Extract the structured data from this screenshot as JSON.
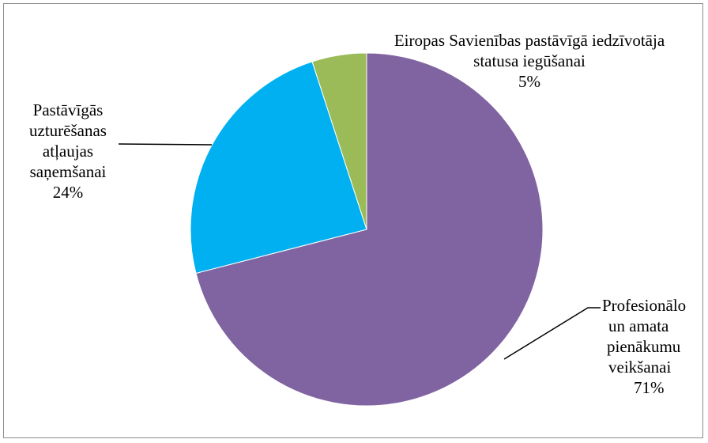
{
  "chart_data": {
    "type": "pie",
    "title": "",
    "start_angle_deg": 0,
    "direction": "clockwise",
    "legend": "none",
    "slices": [
      {
        "label_lines": [
          "Profesionālo",
          "un amata",
          "pienākumu",
          "veikšanai"
        ],
        "percent_label": "71%",
        "value": 71,
        "color": "#8064a2"
      },
      {
        "label_lines": [
          "Pastāvīgās",
          "uzturēšanas",
          "atļaujas",
          "saņemšanai"
        ],
        "percent_label": "24%",
        "value": 24,
        "color": "#00b0f0"
      },
      {
        "label_lines": [
          "Eiropas Savienības pastāvīgā iedzīvotāja",
          "statusa iegūšanai"
        ],
        "percent_label": "5%",
        "value": 5,
        "color": "#9bbb59"
      }
    ]
  }
}
